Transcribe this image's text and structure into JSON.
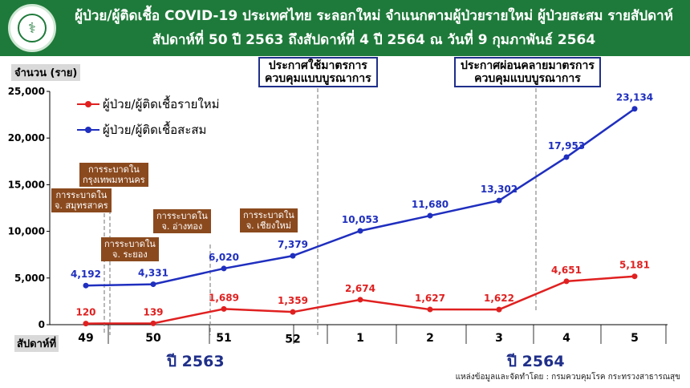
{
  "header": {
    "title_line1": "ผู้ป่วย/ผู้ติดเชื้อ COVID-19 ประเทศไทย ระลอกใหม่ จำแนกตามผู้ป่วยรายใหม่ ผู้ป่วยสะสม รายสัปดาห์",
    "title_line2": "สัปดาห์ที่ 50 ปี 2563 ถึงสัปดาห์ที่ 4 ปี 2564 ณ วันที่ 9 กุมภาพันธ์ 2564",
    "logo_icon": "ministry-seal-icon"
  },
  "chart_data": {
    "type": "line",
    "x_title": "สัปดาห์ที่",
    "categories": [
      "49",
      "50",
      "51",
      "52",
      "1",
      "2",
      "3",
      "4",
      "5"
    ],
    "y_title": "จำนวน (ราย)",
    "ylim": [
      0,
      25000
    ],
    "y_ticks": [
      "0",
      "5,000",
      "10,000",
      "15,000",
      "20,000",
      "25,000"
    ],
    "y_tick_values": [
      0,
      5000,
      10000,
      15000,
      20000,
      25000
    ],
    "series": [
      {
        "name": "ผู้ป่วย/ผู้ติดเชื้อรายใหม่",
        "color": "#e02020",
        "values": [
          120,
          139,
          1689,
          1359,
          2674,
          1627,
          1622,
          4651,
          5181
        ],
        "labels": [
          "120",
          "139",
          "1,689",
          "1,359",
          "2,674",
          "1,627",
          "1,622",
          "4,651",
          "5,181"
        ]
      },
      {
        "name": "ผู้ป่วย/ผู้ติดเชื้อสะสม",
        "color": "#1f2fbf",
        "values": [
          4192,
          4331,
          6020,
          7379,
          10053,
          11680,
          13302,
          17953,
          23134
        ],
        "labels": [
          "4,192",
          "4,331",
          "6,020",
          "7,379",
          "10,053",
          "11,680",
          "13,302",
          "17,953",
          "23,134"
        ]
      }
    ],
    "years": [
      "ปี 2563",
      "ปี 2564"
    ],
    "legend": "top-left",
    "grid": false
  },
  "annotations": {
    "lockdown": [
      "ประกาศใช้มาตรการ",
      "ควบคุมแบบบูรณาการ"
    ],
    "relax": [
      "ประกาศผ่อนคลายมาตรการ",
      "ควบคุมแบบบูรณาการ"
    ]
  },
  "events": {
    "bangkok": [
      "การระบาดใน",
      "กรุงเทพมหานคร"
    ],
    "samutsakhon": [
      "การระบาดใน",
      "จ. สมุทรสาคร"
    ],
    "rayong": [
      "การระบาดใน",
      "จ. ระยอง"
    ],
    "angthong": [
      "การระบาดใน",
      "จ. อ่างทอง"
    ],
    "chiangmai": [
      "การระบาดใน",
      "จ. เชียงใหม่"
    ]
  },
  "source": "แหล่งข้อมูลและจัดทำโดย : กรมควบคุมโรค กระทรวงสาธารณสุข"
}
